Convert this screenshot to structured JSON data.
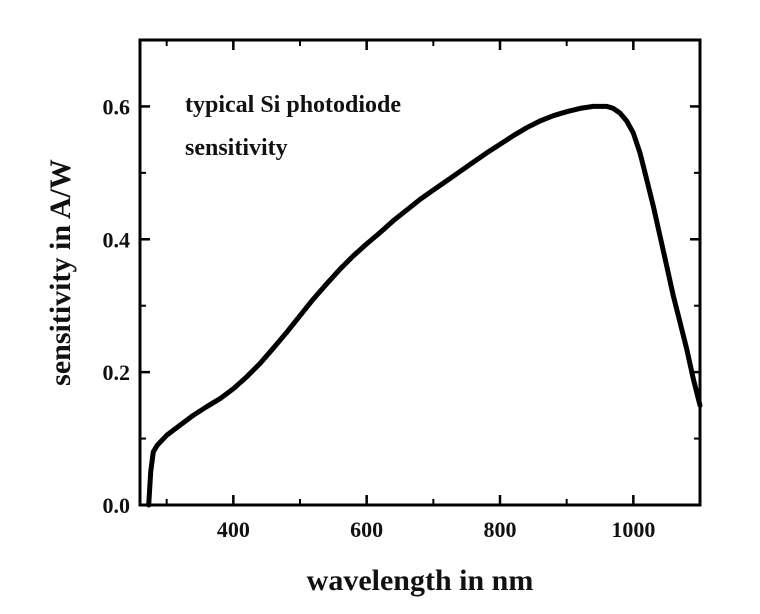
{
  "chart_data": {
    "type": "line",
    "xlabel": "wavelength in nm",
    "ylabel": "sensitivity in A/W",
    "annotation": [
      "typical Si photodiode",
      "sensitivity"
    ],
    "xlim": [
      260,
      1100
    ],
    "ylim": [
      0,
      0.7
    ],
    "xticks": [
      400,
      600,
      800,
      1000
    ],
    "xtick_labels": [
      "400",
      "600",
      "800",
      "1000"
    ],
    "yticks": [
      0.0,
      0.2,
      0.4,
      0.6
    ],
    "ytick_labels": [
      "0.0",
      "0.2",
      "0.4",
      "0.6"
    ],
    "grid": false,
    "line_color": "#000000",
    "series": [
      {
        "x": [
          273,
          276,
          280,
          286,
          300,
          320,
          340,
          360,
          380,
          400,
          420,
          440,
          460,
          480,
          500,
          520,
          540,
          560,
          580,
          600,
          620,
          640,
          660,
          680,
          700,
          720,
          740,
          760,
          780,
          800,
          820,
          840,
          860,
          880,
          900,
          920,
          940,
          960,
          970,
          980,
          990,
          1000,
          1010,
          1020,
          1030,
          1040,
          1050,
          1060,
          1070,
          1080,
          1090,
          1100
        ],
        "y": [
          0.0,
          0.05,
          0.08,
          0.09,
          0.105,
          0.12,
          0.135,
          0.148,
          0.16,
          0.175,
          0.193,
          0.213,
          0.236,
          0.26,
          0.285,
          0.31,
          0.333,
          0.355,
          0.375,
          0.393,
          0.41,
          0.428,
          0.444,
          0.46,
          0.474,
          0.488,
          0.502,
          0.516,
          0.53,
          0.543,
          0.556,
          0.568,
          0.578,
          0.586,
          0.592,
          0.597,
          0.6,
          0.6,
          0.597,
          0.59,
          0.578,
          0.56,
          0.53,
          0.49,
          0.45,
          0.405,
          0.36,
          0.315,
          0.275,
          0.235,
          0.19,
          0.15
        ]
      }
    ]
  }
}
